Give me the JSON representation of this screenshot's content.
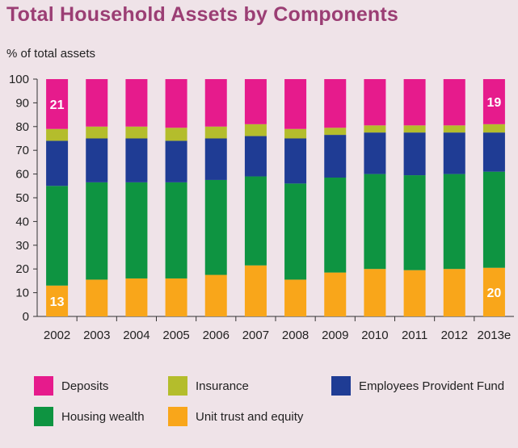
{
  "chart_data": {
    "type": "bar",
    "stacked": true,
    "title": "Total Household Assets by Components",
    "ylabel": "% of total assets",
    "xlabel": "",
    "ylim": [
      0,
      100
    ],
    "yticks": [
      0,
      10,
      20,
      30,
      40,
      50,
      60,
      70,
      80,
      90,
      100
    ],
    "categories": [
      "2002",
      "2003",
      "2004",
      "2005",
      "2006",
      "2007",
      "2008",
      "2009",
      "2010",
      "2011",
      "2012",
      "2013e"
    ],
    "series": [
      {
        "name": "Unit trust and equity",
        "color": "#f9a61a",
        "values": [
          13,
          15.5,
          16,
          16,
          17.5,
          21.5,
          15.5,
          18.5,
          20,
          19.5,
          20,
          20.5
        ]
      },
      {
        "name": "Housing wealth",
        "color": "#0e9441",
        "values": [
          42,
          41,
          40.5,
          40.5,
          40,
          37.5,
          40.5,
          40,
          40,
          40,
          40,
          40.5
        ]
      },
      {
        "name": "Employees Provident Fund",
        "color": "#1f3c94",
        "values": [
          19,
          18.5,
          18.5,
          17.5,
          17.5,
          17,
          19,
          18,
          17.5,
          18,
          17.5,
          16.5
        ]
      },
      {
        "name": "Insurance",
        "color": "#b4bd2c",
        "values": [
          5,
          5,
          5,
          5.5,
          5,
          5,
          4,
          3,
          3,
          3,
          3,
          3.5
        ]
      },
      {
        "name": "Deposits",
        "color": "#e61b8c",
        "values": [
          21,
          20,
          20,
          20.5,
          20,
          19,
          21,
          20.5,
          19.5,
          19.5,
          19.5,
          19
        ]
      }
    ],
    "annotations": [
      {
        "text": "21",
        "category": "2002",
        "series": "Deposits"
      },
      {
        "text": "13",
        "category": "2002",
        "series": "Unit trust and equity"
      },
      {
        "text": "19",
        "category": "2013e",
        "series": "Deposits"
      },
      {
        "text": "20",
        "category": "2013e",
        "series": "Unit trust and equity"
      }
    ],
    "grid": false,
    "legend_position": "bottom"
  },
  "legend": [
    {
      "label": "Deposits",
      "color": "#e61b8c"
    },
    {
      "label": "Insurance",
      "color": "#b4bd2c"
    },
    {
      "label": "Employees Provident Fund",
      "color": "#1f3c94"
    },
    {
      "label": "Housing wealth",
      "color": "#0e9441"
    },
    {
      "label": "Unit trust and equity",
      "color": "#f9a61a"
    }
  ]
}
